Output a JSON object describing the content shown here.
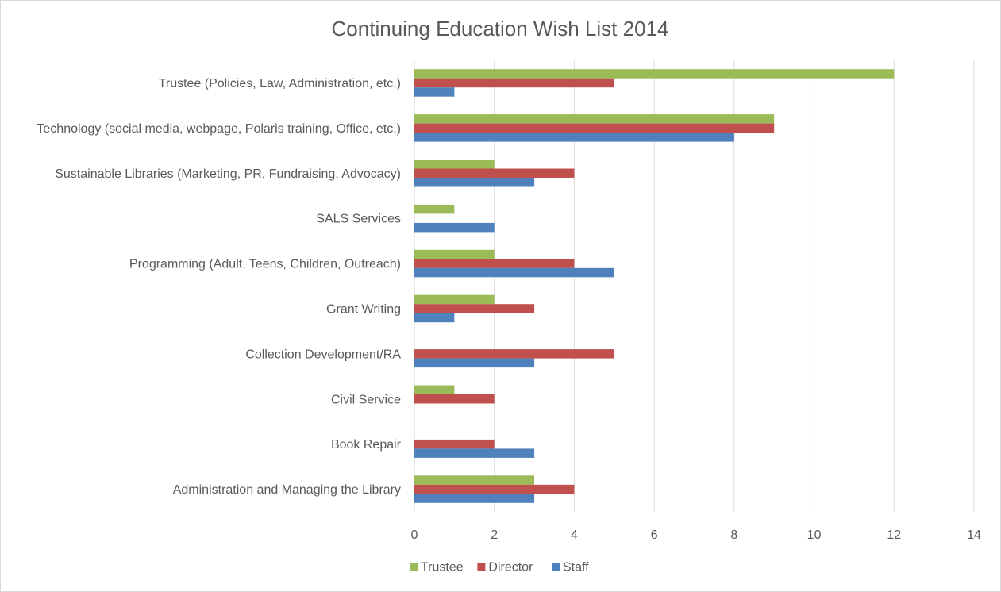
{
  "chart_data": {
    "type": "bar",
    "orientation": "horizontal",
    "title": "Continuing Education Wish List 2014",
    "xlabel": "",
    "ylabel": "",
    "xlim": [
      0,
      14
    ],
    "ticks": [
      "0",
      "2",
      "4",
      "6",
      "8",
      "10",
      "12",
      "14"
    ],
    "grid": "vertical",
    "legend_position": "bottom",
    "categories": [
      "Trustee (Policies, Law, Administration, etc.)",
      "Technology (social media, webpage, Polaris training, Office, etc.)",
      "Sustainable Libraries (Marketing, PR, Fundraising, Advocacy)",
      "SALS Services",
      "Programming (Adult, Teens, Children, Outreach)",
      "Grant Writing",
      "Collection Development/RA",
      "Civil Service",
      "Book Repair",
      "Administration and Managing the Library"
    ],
    "series": [
      {
        "name": "Trustee",
        "color": "#9bbb59",
        "values": [
          12,
          9,
          2,
          1,
          2,
          2,
          0,
          1,
          0,
          3
        ]
      },
      {
        "name": "Director",
        "color": "#c0504d",
        "values": [
          5,
          9,
          4,
          0,
          4,
          3,
          5,
          2,
          2,
          4
        ]
      },
      {
        "name": "Staff",
        "color": "#4f81bd",
        "values": [
          1,
          8,
          3,
          2,
          5,
          1,
          3,
          0,
          3,
          3
        ]
      }
    ]
  }
}
